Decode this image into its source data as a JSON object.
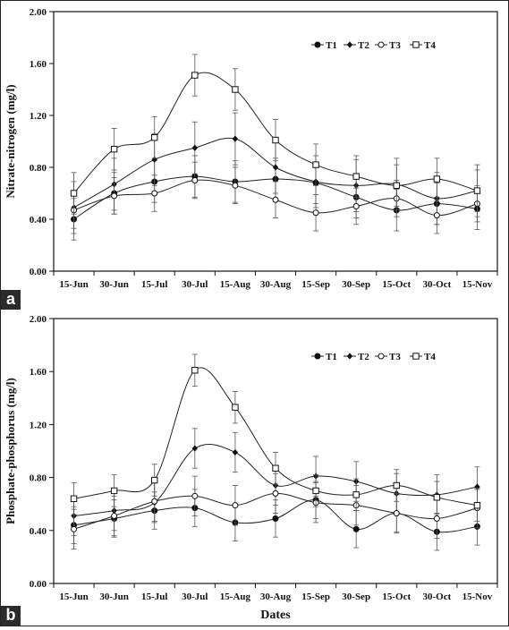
{
  "chart_data": [
    {
      "type": "line",
      "panel_label": "a",
      "title": "",
      "xlabel": "",
      "ylabel": "Nitrate-nitrogen (mg/l)",
      "categories": [
        "15-Jun",
        "30-Jun",
        "15-Jul",
        "30-Jul",
        "15-Aug",
        "30-Aug",
        "15-Sep",
        "30-Sep",
        "15-Oct",
        "30-Oct",
        "15-Nov"
      ],
      "ylim": [
        0,
        2
      ],
      "yticks": [
        "0.00",
        "0.40",
        "0.80",
        "1.20",
        "1.60",
        "2.00"
      ],
      "ytick_values": [
        0,
        0.4,
        0.8,
        1.2,
        1.6,
        2.0
      ],
      "grid": false,
      "legend_position": "top-right",
      "series": [
        {
          "name": "T1",
          "marker": "filled-circle",
          "values": [
            0.4,
            0.6,
            0.69,
            0.73,
            0.69,
            0.71,
            0.68,
            0.57,
            0.47,
            0.52,
            0.48
          ],
          "err": [
            0.16,
            0.16,
            0.16,
            0.16,
            0.16,
            0.16,
            0.16,
            0.16,
            0.16,
            0.16,
            0.16
          ]
        },
        {
          "name": "T2",
          "marker": "filled-diamond",
          "values": [
            0.49,
            0.67,
            0.86,
            0.95,
            1.02,
            0.8,
            0.69,
            0.66,
            0.67,
            0.56,
            0.62
          ],
          "err": [
            0.2,
            0.2,
            0.2,
            0.2,
            0.2,
            0.2,
            0.2,
            0.2,
            0.2,
            0.2,
            0.2
          ]
        },
        {
          "name": "T3",
          "marker": "open-circle",
          "values": [
            0.47,
            0.58,
            0.6,
            0.7,
            0.66,
            0.55,
            0.45,
            0.5,
            0.56,
            0.43,
            0.52
          ],
          "err": [
            0.14,
            0.14,
            0.14,
            0.14,
            0.14,
            0.14,
            0.14,
            0.14,
            0.14,
            0.14,
            0.14
          ]
        },
        {
          "name": "T4",
          "marker": "open-square",
          "values": [
            0.6,
            0.94,
            1.03,
            1.51,
            1.4,
            1.01,
            0.82,
            0.73,
            0.66,
            0.71,
            0.62
          ],
          "err": [
            0.16,
            0.16,
            0.16,
            0.16,
            0.16,
            0.16,
            0.16,
            0.16,
            0.16,
            0.16,
            0.16
          ]
        }
      ]
    },
    {
      "type": "line",
      "panel_label": "b",
      "title": "",
      "xlabel": "Dates",
      "ylabel": "Phosphate-phosphorus (mg/l)",
      "categories": [
        "15-Jun",
        "30-Jun",
        "15-Jul",
        "30-Jul",
        "15-Aug",
        "30-Aug",
        "15-Sep",
        "30-Sep",
        "15-Oct",
        "30-Oct",
        "15-Nov"
      ],
      "ylim": [
        0,
        2
      ],
      "yticks": [
        "0.00",
        "0.40",
        "0.80",
        "1.20",
        "1.60",
        "2.00"
      ],
      "ytick_values": [
        0,
        0.4,
        0.8,
        1.2,
        1.6,
        2.0
      ],
      "grid": false,
      "legend_position": "top-right",
      "series": [
        {
          "name": "T1",
          "marker": "filled-circle",
          "values": [
            0.44,
            0.49,
            0.55,
            0.57,
            0.46,
            0.49,
            0.63,
            0.41,
            0.53,
            0.39,
            0.43
          ],
          "err": [
            0.14,
            0.14,
            0.14,
            0.14,
            0.14,
            0.14,
            0.14,
            0.14,
            0.14,
            0.14,
            0.14
          ]
        },
        {
          "name": "T2",
          "marker": "filled-diamond",
          "values": [
            0.51,
            0.55,
            0.61,
            1.02,
            0.99,
            0.74,
            0.81,
            0.77,
            0.68,
            0.67,
            0.73
          ],
          "err": [
            0.15,
            0.15,
            0.15,
            0.15,
            0.15,
            0.15,
            0.15,
            0.15,
            0.15,
            0.15,
            0.15
          ]
        },
        {
          "name": "T3",
          "marker": "open-circle",
          "values": [
            0.41,
            0.51,
            0.62,
            0.66,
            0.59,
            0.68,
            0.61,
            0.59,
            0.53,
            0.49,
            0.57
          ],
          "err": [
            0.15,
            0.15,
            0.15,
            0.15,
            0.15,
            0.15,
            0.15,
            0.15,
            0.15,
            0.15,
            0.15
          ]
        },
        {
          "name": "T4",
          "marker": "open-square",
          "values": [
            0.64,
            0.7,
            0.78,
            1.61,
            1.33,
            0.87,
            0.7,
            0.67,
            0.74,
            0.65,
            0.59
          ],
          "err": [
            0.12,
            0.12,
            0.12,
            0.12,
            0.12,
            0.12,
            0.12,
            0.12,
            0.12,
            0.12,
            0.12
          ]
        }
      ]
    }
  ]
}
